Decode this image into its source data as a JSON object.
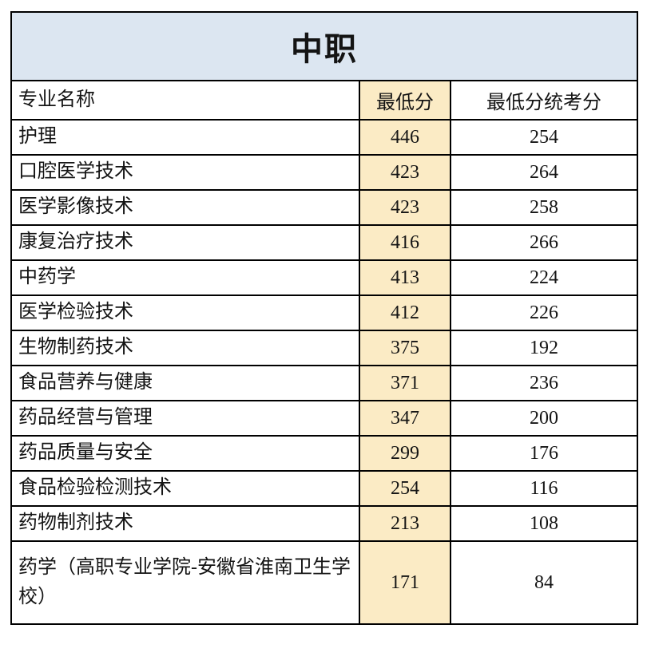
{
  "colors": {
    "title_bg": "#DCE6F1",
    "highlight_bg": "#FBEBC5",
    "border": "#000000",
    "text": "#141414"
  },
  "chart_data": {
    "type": "table",
    "title": "中职",
    "columns": [
      "专业名称",
      "最低分",
      "最低分统考分"
    ],
    "rows": [
      {
        "name": "护理",
        "min_score": "446",
        "min_unified_score": "254"
      },
      {
        "name": "口腔医学技术",
        "min_score": "423",
        "min_unified_score": "264"
      },
      {
        "name": "医学影像技术",
        "min_score": "423",
        "min_unified_score": "258"
      },
      {
        "name": "康复治疗技术",
        "min_score": "416",
        "min_unified_score": "266"
      },
      {
        "name": "中药学",
        "min_score": "413",
        "min_unified_score": "224"
      },
      {
        "name": "医学检验技术",
        "min_score": "412",
        "min_unified_score": "226"
      },
      {
        "name": "生物制药技术",
        "min_score": "375",
        "min_unified_score": "192"
      },
      {
        "name": "食品营养与健康",
        "min_score": "371",
        "min_unified_score": "236"
      },
      {
        "name": "药品经营与管理",
        "min_score": "347",
        "min_unified_score": "200"
      },
      {
        "name": "药品质量与安全",
        "min_score": "299",
        "min_unified_score": "176"
      },
      {
        "name": "食品检验检测技术",
        "min_score": "254",
        "min_unified_score": "116"
      },
      {
        "name": "药物制剂技术",
        "min_score": "213",
        "min_unified_score": "108"
      },
      {
        "name": "药学（高职专业学院-安徽省淮南卫生学校）",
        "min_score": "171",
        "min_unified_score": "84"
      }
    ]
  }
}
